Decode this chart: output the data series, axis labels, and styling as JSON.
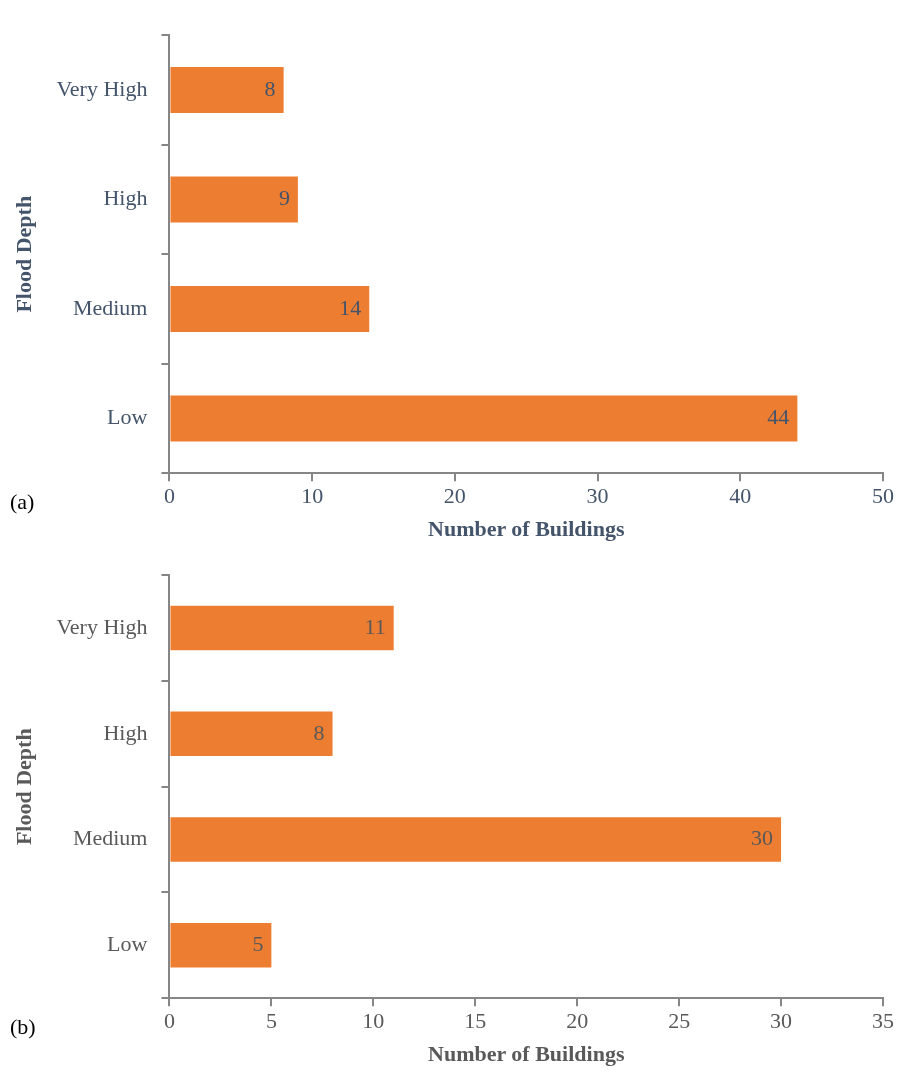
{
  "chart_data": [
    {
      "type": "bar",
      "orientation": "horizontal",
      "categories": [
        "Very High",
        "High",
        "Medium",
        "Low"
      ],
      "values": [
        8,
        9,
        14,
        44
      ],
      "color": "#ed7d31",
      "xlim": [
        0,
        50
      ],
      "xticks": [
        0,
        10,
        20,
        30,
        40,
        50
      ],
      "xlabel": "Number of Buildings",
      "ylabel": "Flood Depth",
      "data_labels": true,
      "annotations": [
        "(a)"
      ]
    },
    {
      "type": "bar",
      "orientation": "horizontal",
      "categories": [
        "Very High",
        "High",
        "Medium",
        "Low"
      ],
      "values": [
        11,
        8,
        30,
        5
      ],
      "color": "#ed7d31",
      "xlim": [
        0,
        35
      ],
      "xticks": [
        0,
        5,
        10,
        15,
        20,
        25,
        30,
        35
      ],
      "xlabel": "Number of Buildings",
      "ylabel": "Flood Depth",
      "data_labels": true,
      "annotations": [
        "(b)"
      ]
    }
  ]
}
